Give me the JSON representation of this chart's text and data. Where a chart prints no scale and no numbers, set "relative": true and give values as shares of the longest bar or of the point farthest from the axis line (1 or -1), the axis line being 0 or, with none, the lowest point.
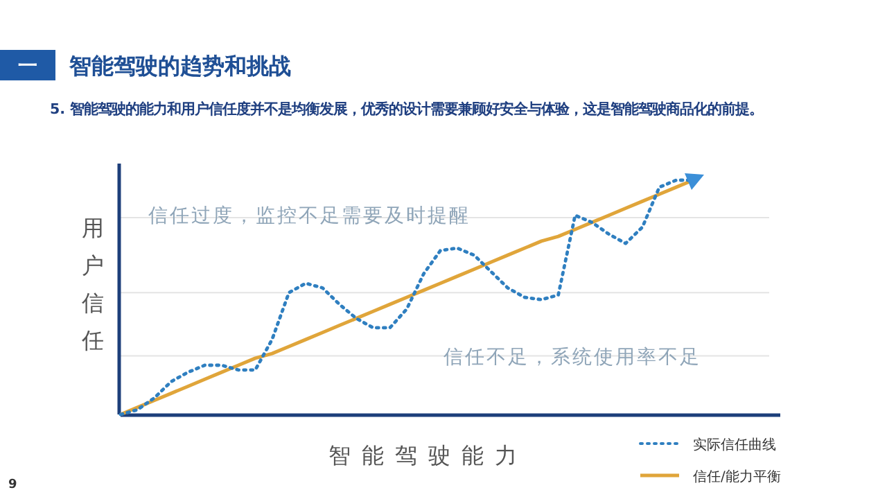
{
  "chart_data": {
    "type": "line",
    "title": "智能驾驶的趋势和挑战",
    "subtitle": "5. 智能驾驶的能力和用户信任度并不是均衡发展，优秀的设计需要兼顾好安全与体验，这是智能驾驶商品化的前提。",
    "xlabel": "智能驾驶能力",
    "ylabel": "用户信任",
    "relative": true,
    "legend": "bottom right",
    "annotations": [
      "一",
      "信任过度，监控不足需要及时提醒",
      "信任不足，系统使用率不足",
      "9"
    ],
    "categories": [
      null,
      null,
      null,
      null,
      null,
      null,
      null,
      null,
      null,
      null,
      null,
      null,
      null,
      null,
      null,
      null,
      null,
      null,
      null,
      null,
      null,
      null,
      null,
      null,
      null,
      null,
      null,
      null,
      null,
      null,
      null,
      null,
      null,
      null,
      null
    ],
    "ref_lines": [
      {
        "axis": "y",
        "value": 0.25,
        "color": "#e4e4e4"
      },
      {
        "axis": "y",
        "value": 0.52,
        "color": "#e4e4e4"
      },
      {
        "axis": "y",
        "value": 0.84,
        "color": "#e4e4e4"
      }
    ],
    "series": [
      {
        "name": "实际信任曲线",
        "color": "#2f7fc0",
        "line_style": "dotted",
        "marker": "none",
        "values": [
          0,
          0.02,
          0.07,
          0.14,
          0.18,
          0.21,
          0.21,
          0.19,
          0.19,
          0.32,
          0.52,
          0.56,
          0.54,
          0.47,
          0.41,
          0.37,
          0.37,
          0.45,
          0.6,
          0.7,
          0.71,
          0.68,
          0.61,
          0.54,
          0.5,
          0.49,
          0.51,
          0.85,
          0.82,
          0.77,
          0.73,
          0.8,
          0.97,
          1,
          1
        ]
      },
      {
        "name": "信任/能力平衡",
        "color": "#e0a53a",
        "line_style": "solid",
        "marker": "none",
        "values": [
          0,
          0.03,
          0.06,
          0.09,
          0.12,
          0.15,
          0.18,
          0.21,
          0.24,
          0.26,
          0.29,
          0.32,
          0.35,
          0.38,
          0.41,
          0.44,
          0.47,
          0.5,
          0.53,
          0.56,
          0.59,
          0.62,
          0.65,
          0.68,
          0.71,
          0.74,
          0.76,
          0.79,
          0.82,
          0.85,
          0.88,
          0.91,
          0.94,
          0.97,
          1
        ]
      }
    ]
  }
}
